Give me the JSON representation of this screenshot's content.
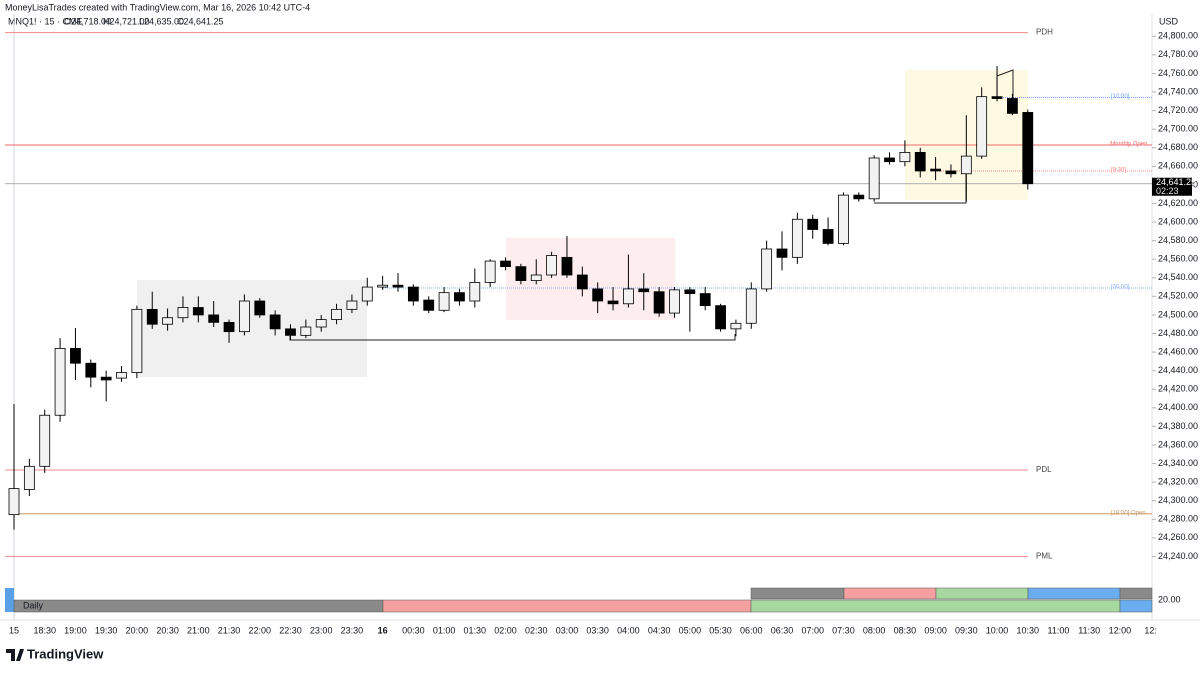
{
  "header": "MoneyLisaTrades created with TradingView.com, Mar 16, 2026 10:42 UTC-4",
  "chart_data": {
    "type": "candlestick",
    "legend": {
      "symbol": "MNQ1! · 15 · CME",
      "open": "O24,718.00",
      "high": "H24,721.00",
      "low": "L24,635.00",
      "close": "C24,641.25"
    },
    "currency": "USD",
    "x_labels": [
      "15",
      "18:30",
      "19:00",
      "19:30",
      "20:00",
      "20:30",
      "21:00",
      "21:30",
      "22:00",
      "22:30",
      "23:00",
      "23:30",
      "16",
      "00:30",
      "01:00",
      "01:30",
      "02:00",
      "02:30",
      "03:00",
      "03:30",
      "04:00",
      "04:30",
      "05:00",
      "05:30",
      "06:00",
      "06:30",
      "07:00",
      "07:30",
      "08:00",
      "08:30",
      "09:00",
      "09:30",
      "10:00",
      "10:30",
      "11:00",
      "11:30",
      "12:00",
      "12:"
    ],
    "open": [
      24285,
      24312,
      24337,
      24392,
      24464,
      24448,
      24433,
      24432,
      24438,
      24506,
      24490,
      24497,
      24508,
      24500,
      24492,
      24482,
      24515,
      24500,
      24485,
      24478,
      24487,
      24495,
      24506,
      24515,
      24530,
      24532,
      24530,
      24516,
      24505,
      24524,
      24515,
      24535,
      24558,
      24552,
      24537,
      24543,
      24562,
      24543,
      24528,
      24515,
      24512,
      24528,
      24525,
      24502,
      24527,
      24523,
      24510,
      24485,
      24491,
      24528,
      24571,
      24562,
      24603,
      24592,
      24577,
      24629,
      24625,
      24669,
      24665,
      24675,
      24657,
      24655,
      24652,
      24671,
      24735,
      24733,
      24718
    ],
    "high": [
      24404,
      24345,
      24398,
      24475,
      24486,
      24452,
      24440,
      24445,
      24510,
      24525,
      24507,
      24520,
      24520,
      24515,
      24495,
      24522,
      24518,
      24505,
      24490,
      24495,
      24500,
      24512,
      24522,
      24540,
      24542,
      24545,
      24533,
      24520,
      24530,
      24528,
      24550,
      24560,
      24562,
      24555,
      24560,
      24568,
      24585,
      24552,
      24535,
      24530,
      24565,
      24545,
      24530,
      24530,
      24530,
      24530,
      24512,
      24495,
      24535,
      24580,
      24590,
      24610,
      24608,
      24605,
      24632,
      24632,
      24672,
      24675,
      24688,
      24680,
      24670,
      24662,
      24715,
      24745,
      24768,
      24738,
      24721
    ],
    "low": [
      24269,
      24305,
      24330,
      24385,
      24430,
      24422,
      24407,
      24428,
      24432,
      24485,
      24483,
      24492,
      24492,
      24487,
      24470,
      24478,
      24497,
      24478,
      24473,
      24475,
      24482,
      24490,
      24502,
      24510,
      24527,
      24525,
      24510,
      24502,
      24503,
      24510,
      24508,
      24530,
      24548,
      24533,
      24533,
      24540,
      24540,
      24520,
      24502,
      24505,
      24508,
      24505,
      24498,
      24497,
      24482,
      24505,
      24482,
      24477,
      24485,
      24525,
      24548,
      24555,
      24582,
      24575,
      24575,
      24622,
      24622,
      24662,
      24660,
      24648,
      24645,
      24648,
      24622,
      24668,
      24730,
      24715,
      24635
    ],
    "close": [
      24313,
      24337,
      24392,
      24464,
      24448,
      24433,
      24430,
      24438,
      24506,
      24490,
      24497,
      24508,
      24500,
      24492,
      24482,
      24515,
      24500,
      24485,
      24478,
      24487,
      24495,
      24506,
      24515,
      24530,
      24532,
      24530,
      24515,
      24505,
      24524,
      24515,
      24535,
      24558,
      24552,
      24537,
      24543,
      24564,
      24543,
      24528,
      24515,
      24512,
      24528,
      24525,
      24502,
      24527,
      24523,
      24510,
      24485,
      24491,
      24528,
      24571,
      24562,
      24603,
      24592,
      24577,
      24629,
      24625,
      24669,
      24665,
      24675,
      24655,
      24655,
      24652,
      24671,
      24735,
      24733,
      24717,
      24641.25
    ],
    "up_color": "#f2f2f2",
    "down_color": "#000000",
    "ylim": [
      24220,
      24824
    ],
    "yticks": [
      {
        "value": 24240,
        "label": "24,240.00"
      },
      {
        "value": 24260,
        "label": "24,260.00"
      },
      {
        "value": 24280,
        "label": "24,280.00"
      },
      {
        "value": 24300,
        "label": "24,300.00"
      },
      {
        "value": 24320,
        "label": "24,320.00"
      },
      {
        "value": 24340,
        "label": "24,340.00"
      },
      {
        "value": 24360,
        "label": "24,360.00"
      },
      {
        "value": 24380,
        "label": "24,380.00"
      },
      {
        "value": 24400,
        "label": "24,400.00"
      },
      {
        "value": 24420,
        "label": "24,420.00"
      },
      {
        "value": 24440,
        "label": "24,440.00"
      },
      {
        "value": 24460,
        "label": "24,460.00"
      },
      {
        "value": 24480,
        "label": "24,480.00"
      },
      {
        "value": 24500,
        "label": "24,500.00"
      },
      {
        "value": 24520,
        "label": "24,520.00"
      },
      {
        "value": 24540,
        "label": "24,540.00"
      },
      {
        "value": 24560,
        "label": "24,560.00"
      },
      {
        "value": 24580,
        "label": "24,580.00"
      },
      {
        "value": 24600,
        "label": "24,600.00"
      },
      {
        "value": 24620,
        "label": "24,620.00"
      },
      {
        "value": 24640,
        "label": "24,640.00"
      },
      {
        "value": 24660,
        "label": "24,660.00"
      },
      {
        "value": 24680,
        "label": "24,680.00"
      },
      {
        "value": 24700,
        "label": "24,700.00"
      },
      {
        "value": 24720,
        "label": "24,720.00"
      },
      {
        "value": 24740,
        "label": "24,740.00"
      },
      {
        "value": 24760,
        "label": "24,760.00"
      },
      {
        "value": 24780,
        "label": "24,780.00"
      },
      {
        "value": 24800,
        "label": "24,800.00"
      }
    ],
    "levels": [
      {
        "label": "PDH",
        "value": 24804,
        "color": "#f08a8a"
      },
      {
        "label": "Monthly Open",
        "value": 24683,
        "color": "#ef6a6a"
      },
      {
        "label": "[10:00]",
        "value": 24734,
        "color": "#6d9ef0"
      },
      {
        "label": "[9:30]",
        "value": 24655,
        "color": "#f08a8a"
      },
      {
        "label": "[00:00]",
        "value": 24529,
        "color": "#8fb0f0"
      },
      {
        "label": "PDL",
        "value": 24333,
        "color": "#f08a8a"
      },
      {
        "label": "[18:00] Open",
        "value": 24286,
        "color": "#c89a66"
      },
      {
        "label": "PML",
        "value": 24240,
        "color": "#f08a8a"
      }
    ],
    "last_price": {
      "value": 24641.25,
      "label": "24,641.25",
      "countdown": "02:23"
    }
  },
  "panel": {
    "label": "Daily",
    "value_label": "20.00"
  },
  "footer": "TradingView"
}
